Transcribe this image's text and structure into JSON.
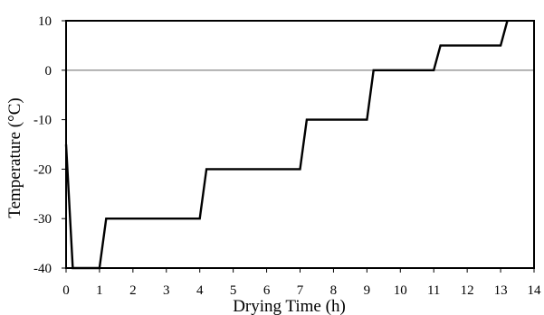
{
  "chart_data": {
    "type": "line",
    "xlabel": "Drying Time (h)",
    "ylabel": "Temperature (°C)",
    "xlim": [
      0,
      14
    ],
    "ylim": [
      -40,
      10
    ],
    "x_ticks": [
      0,
      1,
      2,
      3,
      4,
      5,
      6,
      7,
      8,
      9,
      10,
      11,
      12,
      13,
      14
    ],
    "y_ticks": [
      -40,
      -30,
      -20,
      -10,
      0,
      10
    ],
    "x_tick_labels": [
      "0",
      "1",
      "2",
      "3",
      "4",
      "5",
      "6",
      "7",
      "8",
      "9",
      "10",
      "11",
      "12",
      "13",
      "14"
    ],
    "y_tick_labels": [
      "-40",
      "-30",
      "-20",
      "-10",
      "0",
      "10"
    ],
    "grid": false,
    "zero_line": true,
    "series": [
      {
        "color": "#000000",
        "x": [
          0,
          0.2,
          1.0,
          1.2,
          4.0,
          4.2,
          7.0,
          7.2,
          9.0,
          9.2,
          11.0,
          11.2,
          13.0,
          13.2
        ],
        "y": [
          -15,
          -40,
          -40,
          -30,
          -30,
          -20,
          -20,
          -10,
          -10,
          0,
          0,
          5,
          5,
          10
        ]
      }
    ]
  }
}
